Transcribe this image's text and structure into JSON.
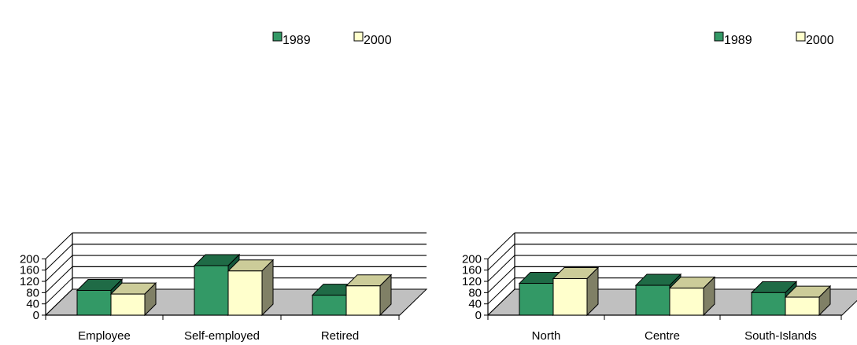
{
  "colors": {
    "series_1989_front": "#339966",
    "series_1989_top": "#1f6b46",
    "series_1989_side": "#14553a",
    "series_2000_front": "#ffffcc",
    "series_2000_top": "#cccc99",
    "series_2000_side": "#808066",
    "floor": "#c0c0c0",
    "gridline": "#000000"
  },
  "chart_data": [
    {
      "type": "bar",
      "categories": [
        "Employee",
        "Self-employed",
        "Retired"
      ],
      "series": [
        {
          "name": "1989",
          "values": [
            88,
            176,
            71
          ]
        },
        {
          "name": "2000",
          "values": [
            75,
            157,
            104
          ]
        }
      ],
      "yticks": [
        "0",
        "40",
        "80",
        "120",
        "160",
        "200"
      ],
      "ylim": [
        0,
        200
      ],
      "grid": true,
      "legend": "top-right",
      "three_d": true
    },
    {
      "type": "bar",
      "categories": [
        "North",
        "Centre",
        "South-Islands"
      ],
      "series": [
        {
          "name": "1989",
          "values": [
            113,
            106,
            80
          ]
        },
        {
          "name": "2000",
          "values": [
            130,
            96,
            64
          ]
        }
      ],
      "yticks": [
        "0",
        "40",
        "80",
        "120",
        "160",
        "200"
      ],
      "ylim": [
        0,
        200
      ],
      "grid": true,
      "legend": "top-right",
      "three_d": true
    }
  ]
}
